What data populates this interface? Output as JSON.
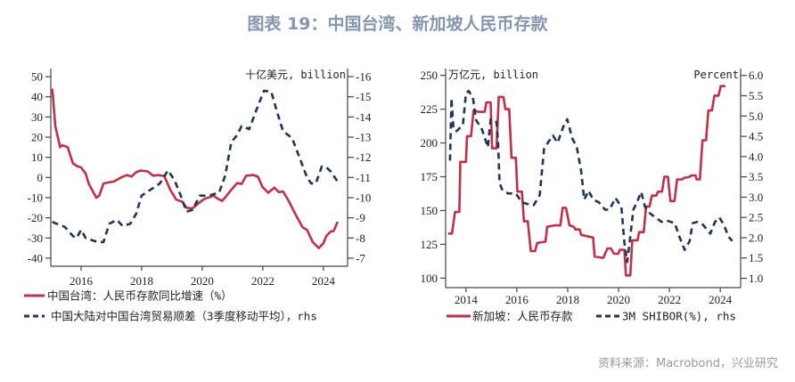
{
  "title": "图表 19：中国台湾、新加坡人民币存款",
  "source": "资料来源：Macrobond，兴业研究",
  "colors": {
    "red": "#c12f48",
    "blue": "#1e3556",
    "axis": "#444444",
    "title": "#8596ad"
  },
  "chart_data": [
    {
      "type": "line",
      "left_unit": "",
      "right_unit": "十亿美元, billion",
      "x_ticks": [
        "2016",
        "2018",
        "2020",
        "2022",
        "2024"
      ],
      "xlim": [
        2015.0,
        2024.8
      ],
      "ylim_left": [
        -44,
        54
      ],
      "yticks_left": [
        50,
        40,
        30,
        20,
        10,
        0,
        -10,
        -20,
        -30,
        -40
      ],
      "ylim_right": [
        -6.6,
        -16.4
      ],
      "right_axis_inverted": true,
      "yticks_right": [
        -16,
        -15,
        -14,
        -13,
        -12,
        -11,
        -10,
        -9,
        -8,
        -7
      ],
      "series": [
        {
          "name": "中国台湾：人民币存款同比增速（%）",
          "axis": "left",
          "style": "solid",
          "color": "#c12f48",
          "points": [
            [
              2015.05,
              44
            ],
            [
              2015.15,
              25.4
            ],
            [
              2015.31,
              15
            ],
            [
              2015.38,
              16
            ],
            [
              2015.56,
              15
            ],
            [
              2015.73,
              7
            ],
            [
              2015.87,
              5.6
            ],
            [
              2016,
              5
            ],
            [
              2016.15,
              2
            ],
            [
              2016.25,
              -3
            ],
            [
              2016.5,
              -10
            ],
            [
              2016.6,
              -9
            ],
            [
              2016.74,
              -3
            ],
            [
              2016.88,
              -2.5
            ],
            [
              2017.08,
              -2
            ],
            [
              2017.32,
              0
            ],
            [
              2017.52,
              1.2
            ],
            [
              2017.67,
              0.5
            ],
            [
              2017.82,
              2.6
            ],
            [
              2017.96,
              3.4
            ],
            [
              2018.2,
              3
            ],
            [
              2018.38,
              0.9
            ],
            [
              2018.55,
              1.2
            ],
            [
              2018.75,
              0.7
            ],
            [
              2018.94,
              -6
            ],
            [
              2019.14,
              -11
            ],
            [
              2019.34,
              -12
            ],
            [
              2019.48,
              -15
            ],
            [
              2019.68,
              -15.3
            ],
            [
              2019.88,
              -12.8
            ],
            [
              2020.07,
              -10.6
            ],
            [
              2020.22,
              -9.9
            ],
            [
              2020.37,
              -9
            ],
            [
              2020.52,
              -10.6
            ],
            [
              2020.66,
              -11.6
            ],
            [
              2020.8,
              -9.1
            ],
            [
              2021.0,
              -5.4
            ],
            [
              2021.15,
              -2.8
            ],
            [
              2021.3,
              -3.2
            ],
            [
              2021.45,
              0.9
            ],
            [
              2021.69,
              1.2
            ],
            [
              2021.84,
              0.4
            ],
            [
              2021.99,
              -4.7
            ],
            [
              2022.18,
              -7.6
            ],
            [
              2022.38,
              -5
            ],
            [
              2022.53,
              -7.3
            ],
            [
              2022.67,
              -6.9
            ],
            [
              2022.87,
              -12
            ],
            [
              2023.07,
              -18
            ],
            [
              2023.31,
              -24.6
            ],
            [
              2023.46,
              -26
            ],
            [
              2023.65,
              -32
            ],
            [
              2023.85,
              -35
            ],
            [
              2024.0,
              -32.6
            ],
            [
              2024.1,
              -29
            ],
            [
              2024.24,
              -26.8
            ],
            [
              2024.34,
              -26.5
            ],
            [
              2024.47,
              -22
            ]
          ]
        },
        {
          "name": "中国大陆对中国台湾贸易顺差（3季度移动平均），rhs",
          "axis": "right",
          "style": "dashed",
          "color": "#1e3556",
          "points": [
            [
              2015.05,
              -8.8
            ],
            [
              2015.2,
              -8.7
            ],
            [
              2015.46,
              -8.55
            ],
            [
              2015.73,
              -8.1
            ],
            [
              2015.85,
              -8.0
            ],
            [
              2016,
              -8.4
            ],
            [
              2016.15,
              -8
            ],
            [
              2016.35,
              -7.9
            ],
            [
              2016.54,
              -7.8
            ],
            [
              2016.74,
              -7.8
            ],
            [
              2016.93,
              -8.7
            ],
            [
              2017.18,
              -8.9
            ],
            [
              2017.37,
              -8.6
            ],
            [
              2017.62,
              -8.7
            ],
            [
              2017.82,
              -9.2
            ],
            [
              2018.0,
              -10.1
            ],
            [
              2018.3,
              -10.4
            ],
            [
              2018.6,
              -10.7
            ],
            [
              2018.87,
              -11.35
            ],
            [
              2019.09,
              -10.85
            ],
            [
              2019.29,
              -10.1
            ],
            [
              2019.48,
              -9.3
            ],
            [
              2019.68,
              -9.4
            ],
            [
              2019.92,
              -10.1
            ],
            [
              2020.22,
              -10.1
            ],
            [
              2020.56,
              -10.25
            ],
            [
              2020.76,
              -11.1
            ],
            [
              2020.96,
              -12.75
            ],
            [
              2021.15,
              -13.1
            ],
            [
              2021.3,
              -13.55
            ],
            [
              2021.55,
              -13.4
            ],
            [
              2021.79,
              -14.35
            ],
            [
              2022.04,
              -15.3
            ],
            [
              2022.28,
              -15.25
            ],
            [
              2022.48,
              -14.2
            ],
            [
              2022.67,
              -13.3
            ],
            [
              2022.97,
              -12.95
            ],
            [
              2023.21,
              -12
            ],
            [
              2023.46,
              -11
            ],
            [
              2023.6,
              -10.7
            ],
            [
              2023.75,
              -10.7
            ],
            [
              2023.95,
              -11.55
            ],
            [
              2024.1,
              -11.5
            ],
            [
              2024.24,
              -11.3
            ],
            [
              2024.47,
              -10.8
            ]
          ]
        }
      ]
    },
    {
      "type": "line",
      "left_unit": "万亿元, billion",
      "right_unit": "Percent",
      "x_ticks": [
        "2014",
        "2016",
        "2018",
        "2020",
        "2022",
        "2024"
      ],
      "xlim": [
        2013.2,
        2024.8
      ],
      "ylim_left": [
        93,
        255
      ],
      "yticks_left": [
        250,
        225,
        200,
        175,
        150,
        125,
        100
      ],
      "ylim_right": [
        0.77,
        6.17
      ],
      "yticks_right": [
        "6.0",
        "5.5",
        "5.0",
        "4.5",
        "4.0",
        "3.5",
        "3.0",
        "2.5",
        "2.0",
        "1.5",
        "1.0"
      ],
      "series": [
        {
          "name": "新加坡：人民币存款",
          "axis": "left",
          "style": "solid",
          "color": "#c12f48",
          "points": [
            [
              2013.3,
              133
            ],
            [
              2013.45,
              133
            ],
            [
              2013.57,
              149
            ],
            [
              2013.74,
              149
            ],
            [
              2013.78,
              186
            ],
            [
              2014,
              186
            ],
            [
              2014.04,
              205
            ],
            [
              2014.2,
              205
            ],
            [
              2014.3,
              224
            ],
            [
              2014.5,
              223
            ],
            [
              2014.74,
              223
            ],
            [
              2014.8,
              230
            ],
            [
              2014.97,
              230
            ],
            [
              2015.03,
              196
            ],
            [
              2015.2,
              196
            ],
            [
              2015.29,
              234
            ],
            [
              2015.47,
              234
            ],
            [
              2015.55,
              225
            ],
            [
              2015.7,
              225
            ],
            [
              2015.79,
              189
            ],
            [
              2015.96,
              189
            ],
            [
              2016.02,
              164
            ],
            [
              2016.2,
              164
            ],
            [
              2016.28,
              142
            ],
            [
              2016.43,
              142
            ],
            [
              2016.55,
              120
            ],
            [
              2016.72,
              120
            ],
            [
              2016.8,
              126
            ],
            [
              2017.13,
              127
            ],
            [
              2017.19,
              138
            ],
            [
              2017.48,
              139
            ],
            [
              2017.71,
              139
            ],
            [
              2017.8,
              152
            ],
            [
              2017.93,
              152
            ],
            [
              2018.07,
              139
            ],
            [
              2018.24,
              138
            ],
            [
              2018.3,
              136
            ],
            [
              2018.47,
              136
            ],
            [
              2018.53,
              132
            ],
            [
              2018.77,
              131
            ],
            [
              2019.0,
              130
            ],
            [
              2019.06,
              116
            ],
            [
              2019.4,
              115
            ],
            [
              2019.56,
              122
            ],
            [
              2019.7,
              122
            ],
            [
              2019.82,
              118
            ],
            [
              2019.99,
              118
            ],
            [
              2020.05,
              121
            ],
            [
              2020.23,
              121
            ],
            [
              2020.29,
              102
            ],
            [
              2020.46,
              102
            ],
            [
              2020.54,
              128
            ],
            [
              2020.75,
              128
            ],
            [
              2020.81,
              134
            ],
            [
              2020.99,
              134
            ],
            [
              2021.08,
              153
            ],
            [
              2021.22,
              153
            ],
            [
              2021.31,
              161
            ],
            [
              2021.48,
              161
            ],
            [
              2021.55,
              164
            ],
            [
              2021.71,
              164
            ],
            [
              2021.8,
              175
            ],
            [
              2021.94,
              175
            ],
            [
              2022.04,
              157
            ],
            [
              2022.2,
              157
            ],
            [
              2022.3,
              173
            ],
            [
              2022.5,
              173
            ],
            [
              2022.56,
              174
            ],
            [
              2022.8,
              175
            ],
            [
              2022.86,
              176
            ],
            [
              2023.03,
              176
            ],
            [
              2023.07,
              173
            ],
            [
              2023.2,
              173
            ],
            [
              2023.3,
              202
            ],
            [
              2023.44,
              202
            ],
            [
              2023.53,
              224
            ],
            [
              2023.67,
              224
            ],
            [
              2023.77,
              235
            ],
            [
              2023.93,
              235
            ],
            [
              2024.02,
              242
            ],
            [
              2024.2,
              242
            ]
          ]
        },
        {
          "name": "3M SHIBOR(%), rhs",
          "axis": "right",
          "style": "dashed",
          "color": "#1e3556",
          "points": [
            [
              2013.37,
              3.9
            ],
            [
              2013.43,
              5.44
            ],
            [
              2013.51,
              4.67
            ],
            [
              2013.63,
              4.63
            ],
            [
              2013.88,
              4.78
            ],
            [
              2014,
              5.55
            ],
            [
              2014.1,
              5.62
            ],
            [
              2014.27,
              5.47
            ],
            [
              2014.4,
              4.9
            ],
            [
              2014.63,
              4.67
            ],
            [
              2014.86,
              4.23
            ],
            [
              2014.97,
              4.92
            ],
            [
              2015.2,
              4.85
            ],
            [
              2015.26,
              4.37
            ],
            [
              2015.32,
              3.35
            ],
            [
              2015.44,
              3.16
            ],
            [
              2015.67,
              3.09
            ],
            [
              2015.96,
              3.09
            ],
            [
              2016.2,
              2.87
            ],
            [
              2016.43,
              2.83
            ],
            [
              2016.66,
              2.8
            ],
            [
              2016.9,
              3.05
            ],
            [
              2017.07,
              4.19
            ],
            [
              2017.25,
              4.37
            ],
            [
              2017.42,
              4.52
            ],
            [
              2017.6,
              4.34
            ],
            [
              2017.83,
              4.74
            ],
            [
              2017.98,
              4.92
            ],
            [
              2018.18,
              4.45
            ],
            [
              2018.36,
              4.23
            ],
            [
              2018.53,
              3.64
            ],
            [
              2018.65,
              2.94
            ],
            [
              2018.82,
              3.16
            ],
            [
              2019.0,
              2.94
            ],
            [
              2019.23,
              2.87
            ],
            [
              2019.47,
              2.69
            ],
            [
              2019.64,
              2.69
            ],
            [
              2019.88,
              2.98
            ],
            [
              2020.11,
              2.76
            ],
            [
              2020.23,
              1.88
            ],
            [
              2020.34,
              1.4
            ],
            [
              2020.46,
              2.03
            ],
            [
              2020.58,
              2.69
            ],
            [
              2020.75,
              2.91
            ],
            [
              2020.89,
              3.13
            ],
            [
              2021.04,
              2.76
            ],
            [
              2021.22,
              2.61
            ],
            [
              2021.45,
              2.5
            ],
            [
              2021.69,
              2.39
            ],
            [
              2021.86,
              2.43
            ],
            [
              2022.21,
              2.36
            ],
            [
              2022.39,
              2.03
            ],
            [
              2022.6,
              1.7
            ],
            [
              2022.8,
              1.92
            ],
            [
              2022.91,
              2.36
            ],
            [
              2023.09,
              2.39
            ],
            [
              2023.32,
              2.32
            ],
            [
              2023.61,
              2.1
            ],
            [
              2023.79,
              2.39
            ],
            [
              2023.96,
              2.5
            ],
            [
              2024.14,
              2.32
            ],
            [
              2024.32,
              2.03
            ],
            [
              2024.47,
              1.92
            ]
          ]
        }
      ]
    }
  ]
}
